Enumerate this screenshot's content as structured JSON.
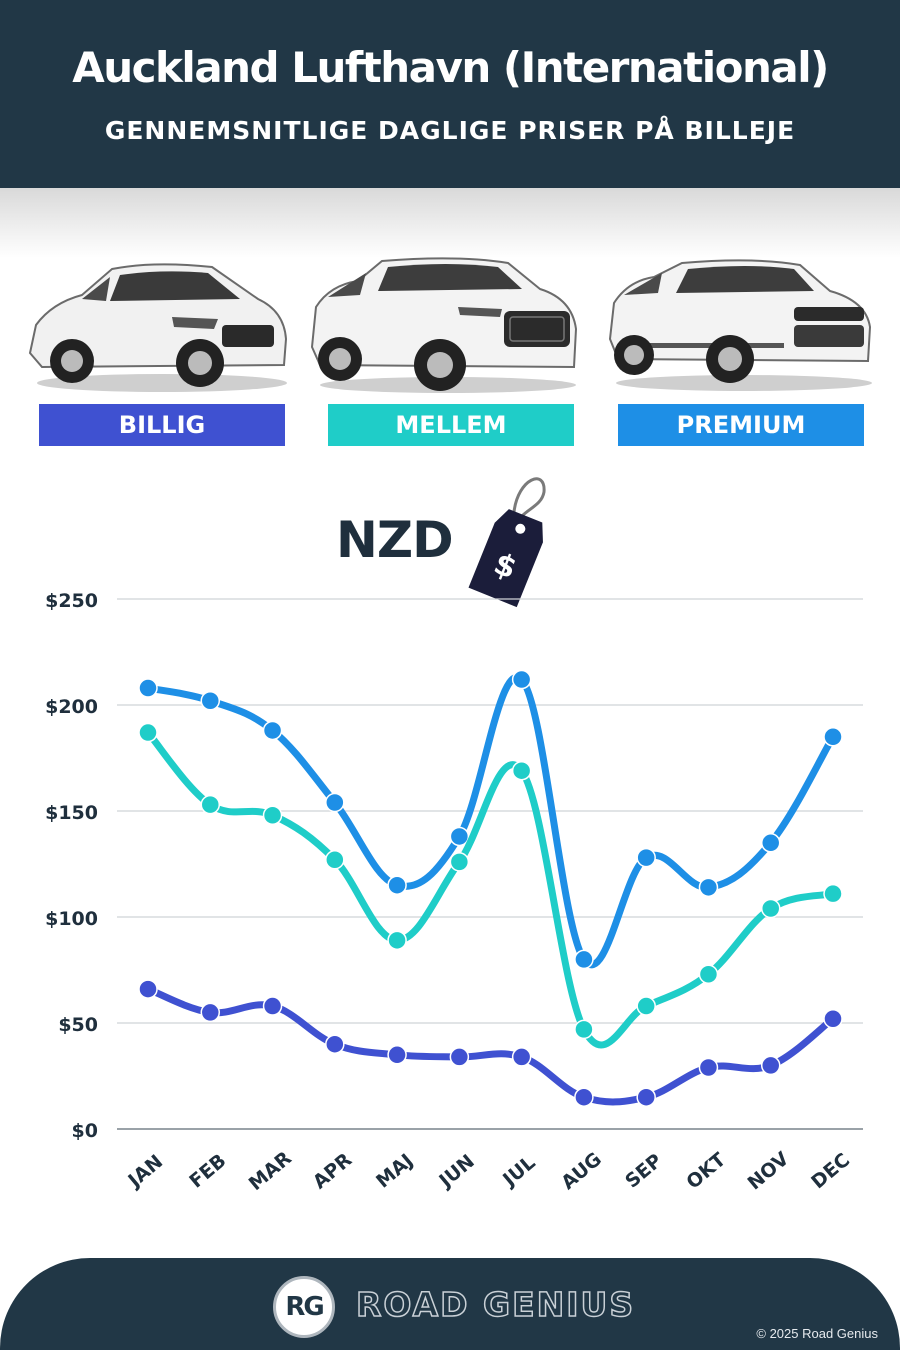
{
  "header": {
    "title": "Auckland Lufthavn (International)",
    "subtitle": "GENNEMSNITLIGE DAGLIGE PRISER PÅ BILLEJE"
  },
  "cars": [
    {
      "label": "BILLIG",
      "color": "#3f51d1",
      "icon": "hatchback-car-icon"
    },
    {
      "label": "MELLEM",
      "color": "#1fcdc8",
      "icon": "suv-car-icon"
    },
    {
      "label": "PREMIUM",
      "color": "#1e8fe6",
      "icon": "luxury-suv-car-icon"
    }
  ],
  "currency": {
    "label": "NZD",
    "tag_symbol": "$",
    "icon": "price-tag-icon"
  },
  "chart_data": {
    "type": "line",
    "categories": [
      "JAN",
      "FEB",
      "MAR",
      "APR",
      "MAJ",
      "JUN",
      "JUL",
      "AUG",
      "SEP",
      "OKT",
      "NOV",
      "DEC"
    ],
    "series": [
      {
        "name": "PREMIUM",
        "color": "#1e8fe6",
        "values": [
          208,
          202,
          188,
          154,
          115,
          138,
          212,
          80,
          128,
          114,
          135,
          185
        ]
      },
      {
        "name": "MELLEM",
        "color": "#1fcdc8",
        "values": [
          187,
          153,
          148,
          127,
          89,
          126,
          169,
          47,
          58,
          73,
          104,
          111
        ]
      },
      {
        "name": "BILLIG",
        "color": "#3f51d1",
        "values": [
          66,
          55,
          58,
          40,
          35,
          34,
          34,
          15,
          15,
          29,
          30,
          52
        ]
      }
    ],
    "yticks": [
      "$0",
      "$50",
      "$100",
      "$150",
      "$200",
      "$250"
    ],
    "ylim": [
      0,
      250
    ],
    "grid": true
  },
  "footer": {
    "logo": "RG",
    "brand": "ROAD GENIUS",
    "copyright": "© 2025 Road Genius"
  }
}
